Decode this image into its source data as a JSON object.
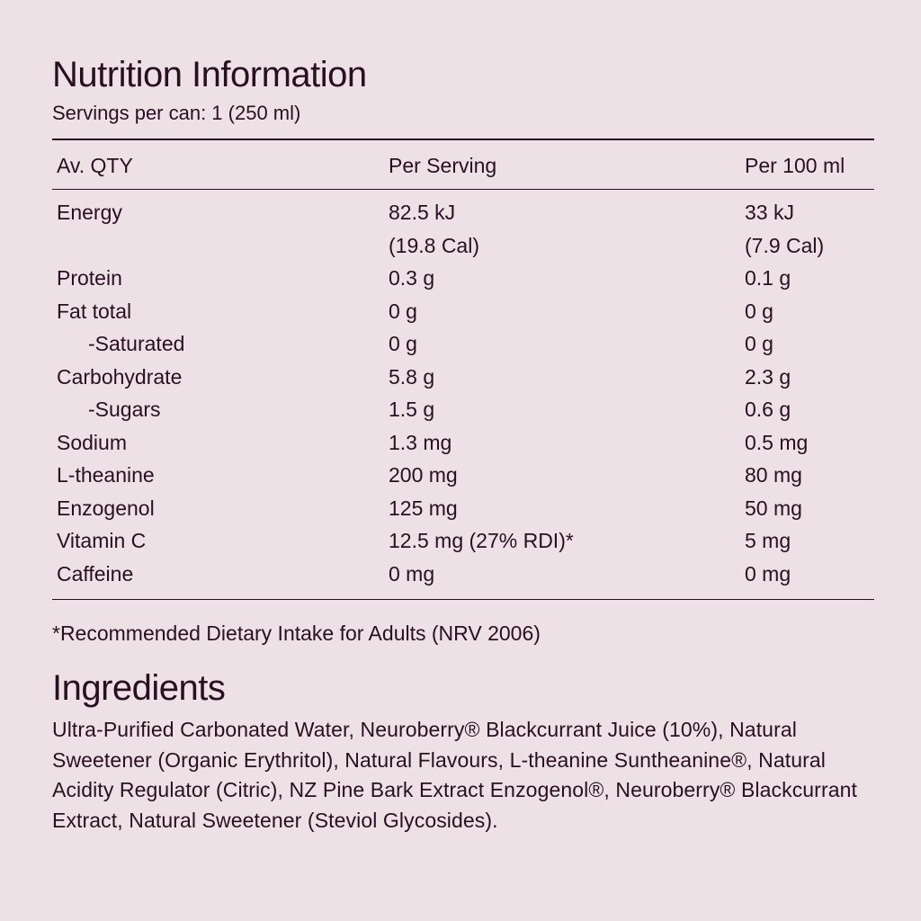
{
  "nutrition": {
    "title": "Nutrition Information",
    "servings": "Servings per can: 1 (250 ml)",
    "headers": [
      "Av. QTY",
      "Per Serving",
      "Per 100 ml"
    ],
    "rows": [
      {
        "name": "Energy",
        "per_serving": "82.5 kJ",
        "per_serving_2": "(19.8 Cal)",
        "per_100": "33 kJ",
        "per_100_2": "(7.9 Cal)"
      },
      {
        "name": "Protein",
        "per_serving": "0.3 g",
        "per_100": "0.1 g"
      },
      {
        "name": "Fat total",
        "per_serving": "0 g",
        "per_100": "0 g"
      },
      {
        "name": "-Saturated",
        "per_serving": "0 g",
        "per_100": "0 g"
      },
      {
        "name": "Carbohydrate",
        "per_serving": "5.8 g",
        "per_100": "2.3 g"
      },
      {
        "name": "-Sugars",
        "per_serving": "1.5 g",
        "per_100": "0.6 g"
      },
      {
        "name": "Sodium",
        "per_serving": "1.3 mg",
        "per_100": "0.5 mg"
      },
      {
        "name": "L-theanine",
        "per_serving": "200 mg",
        "per_100": "80 mg"
      },
      {
        "name": "Enzogenol",
        "per_serving": "125 mg",
        "per_100": "50 mg"
      },
      {
        "name": "Vitamin C",
        "per_serving": "12.5 mg (27% RDI)*",
        "per_100": "5 mg"
      },
      {
        "name": "Caffeine",
        "per_serving": "0 mg",
        "per_100": "0 mg"
      }
    ],
    "footnote": "*Recommended Dietary Intake for Adults (NRV 2006)"
  },
  "ingredients": {
    "title": "Ingredients",
    "text": "Ultra-Purified Carbonated Water, Neuroberry® Blackcurrant Juice (10%), Natural Sweetener (Organic Erythritol), Natural Flavours, L-theanine Suntheanine®, Natural Acidity Regulator (Citric), NZ Pine Bark Extract Enzogenol®, Neuroberry® Blackcurrant Extract, Natural Sweetener (Steviol Glycosides)."
  },
  "colors": {
    "background": "#ede1e6",
    "text": "#2a0f22"
  }
}
